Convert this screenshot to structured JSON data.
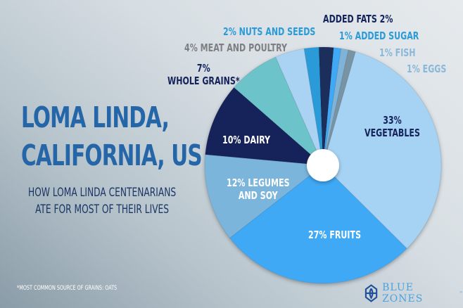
{
  "title_lines": [
    "LOMA LINDA,",
    "CALIFORNIA, US"
  ],
  "subtitle_lines": [
    "HOW LOMA LINDA CENTENARIANS",
    "ATE FOR MOST OF THEIR LIVES"
  ],
  "footnote": "*MOST COMMON SOURCE OF GRAINS: OATS",
  "logo": {
    "text": "BLUE ZONES",
    "trademark": "™"
  },
  "chart_data": {
    "type": "pie",
    "unit": "%",
    "slices": [
      {
        "label": "ADDED FATS",
        "value": 2,
        "color": "#1b2d5c",
        "text": "ADDED FATS 2%"
      },
      {
        "label": "ADDED SUGAR",
        "value": 1,
        "color": "#3fa9f5",
        "text": "1% ADDED SUGAR"
      },
      {
        "label": "FISH",
        "value": 1,
        "color": "#7fb3d8",
        "text": "1% FISH"
      },
      {
        "label": "EGGS",
        "value": 1,
        "color": "#7893a3",
        "text": "1% EGGS"
      },
      {
        "label": "VEGETABLES",
        "value": 33,
        "color": "#a6d2f4",
        "text": [
          "33%",
          "VEGETABLES"
        ]
      },
      {
        "label": "FRUITS",
        "value": 27,
        "color": "#40a9f6",
        "text": "27% FRUITS"
      },
      {
        "label": "LEGUMES AND SOY",
        "value": 12,
        "color": "#7cb5dc",
        "text": [
          "12% LEGUMES",
          "AND SOY"
        ]
      },
      {
        "label": "DAIRY",
        "value": 10,
        "color": "#14235a",
        "text": "10% DAIRY"
      },
      {
        "label": "WHOLE GRAINS*",
        "value": 7,
        "color": "#6cc4ca",
        "text": [
          "7%",
          "WHOLE GRAINS*"
        ]
      },
      {
        "label": "MEAT AND POULTRY",
        "value": 4,
        "color": "#a9d2f3",
        "text": "4% MEAT AND POULTRY"
      },
      {
        "label": "NUTS AND SEEDS",
        "value": 2,
        "color": "#2b9bd8",
        "text": "2% NUTS AND SEEDS"
      }
    ]
  }
}
